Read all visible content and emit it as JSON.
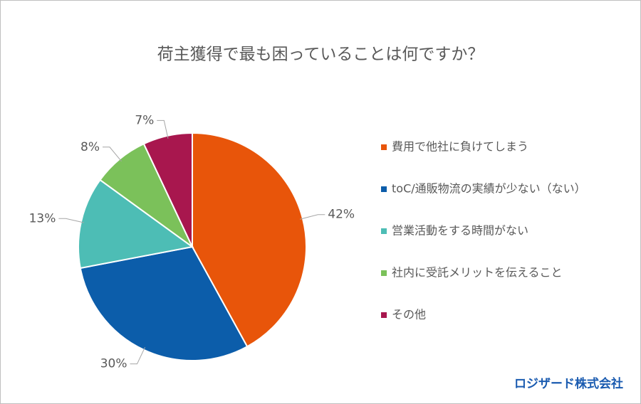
{
  "chart_data": {
    "type": "pie",
    "title": "荷主獲得で最も困っていることは何ですか？",
    "categories": [
      "費用で他社に負けてしまう",
      "toC/通販物流の実績が少ない（ない）",
      "営業活動をする時間がない",
      "社内に受託メリットを伝えること",
      "その他"
    ],
    "values": [
      42,
      30,
      13,
      8,
      7
    ],
    "value_labels": [
      "42%",
      "30%",
      "13%",
      "8%",
      "7%"
    ],
    "colors": [
      "#e8550a",
      "#0c5daa",
      "#4dbdb5",
      "#7bc15a",
      "#a8174e"
    ],
    "legend": "right"
  },
  "footer": {
    "brand": "ロジザード株式会社"
  }
}
